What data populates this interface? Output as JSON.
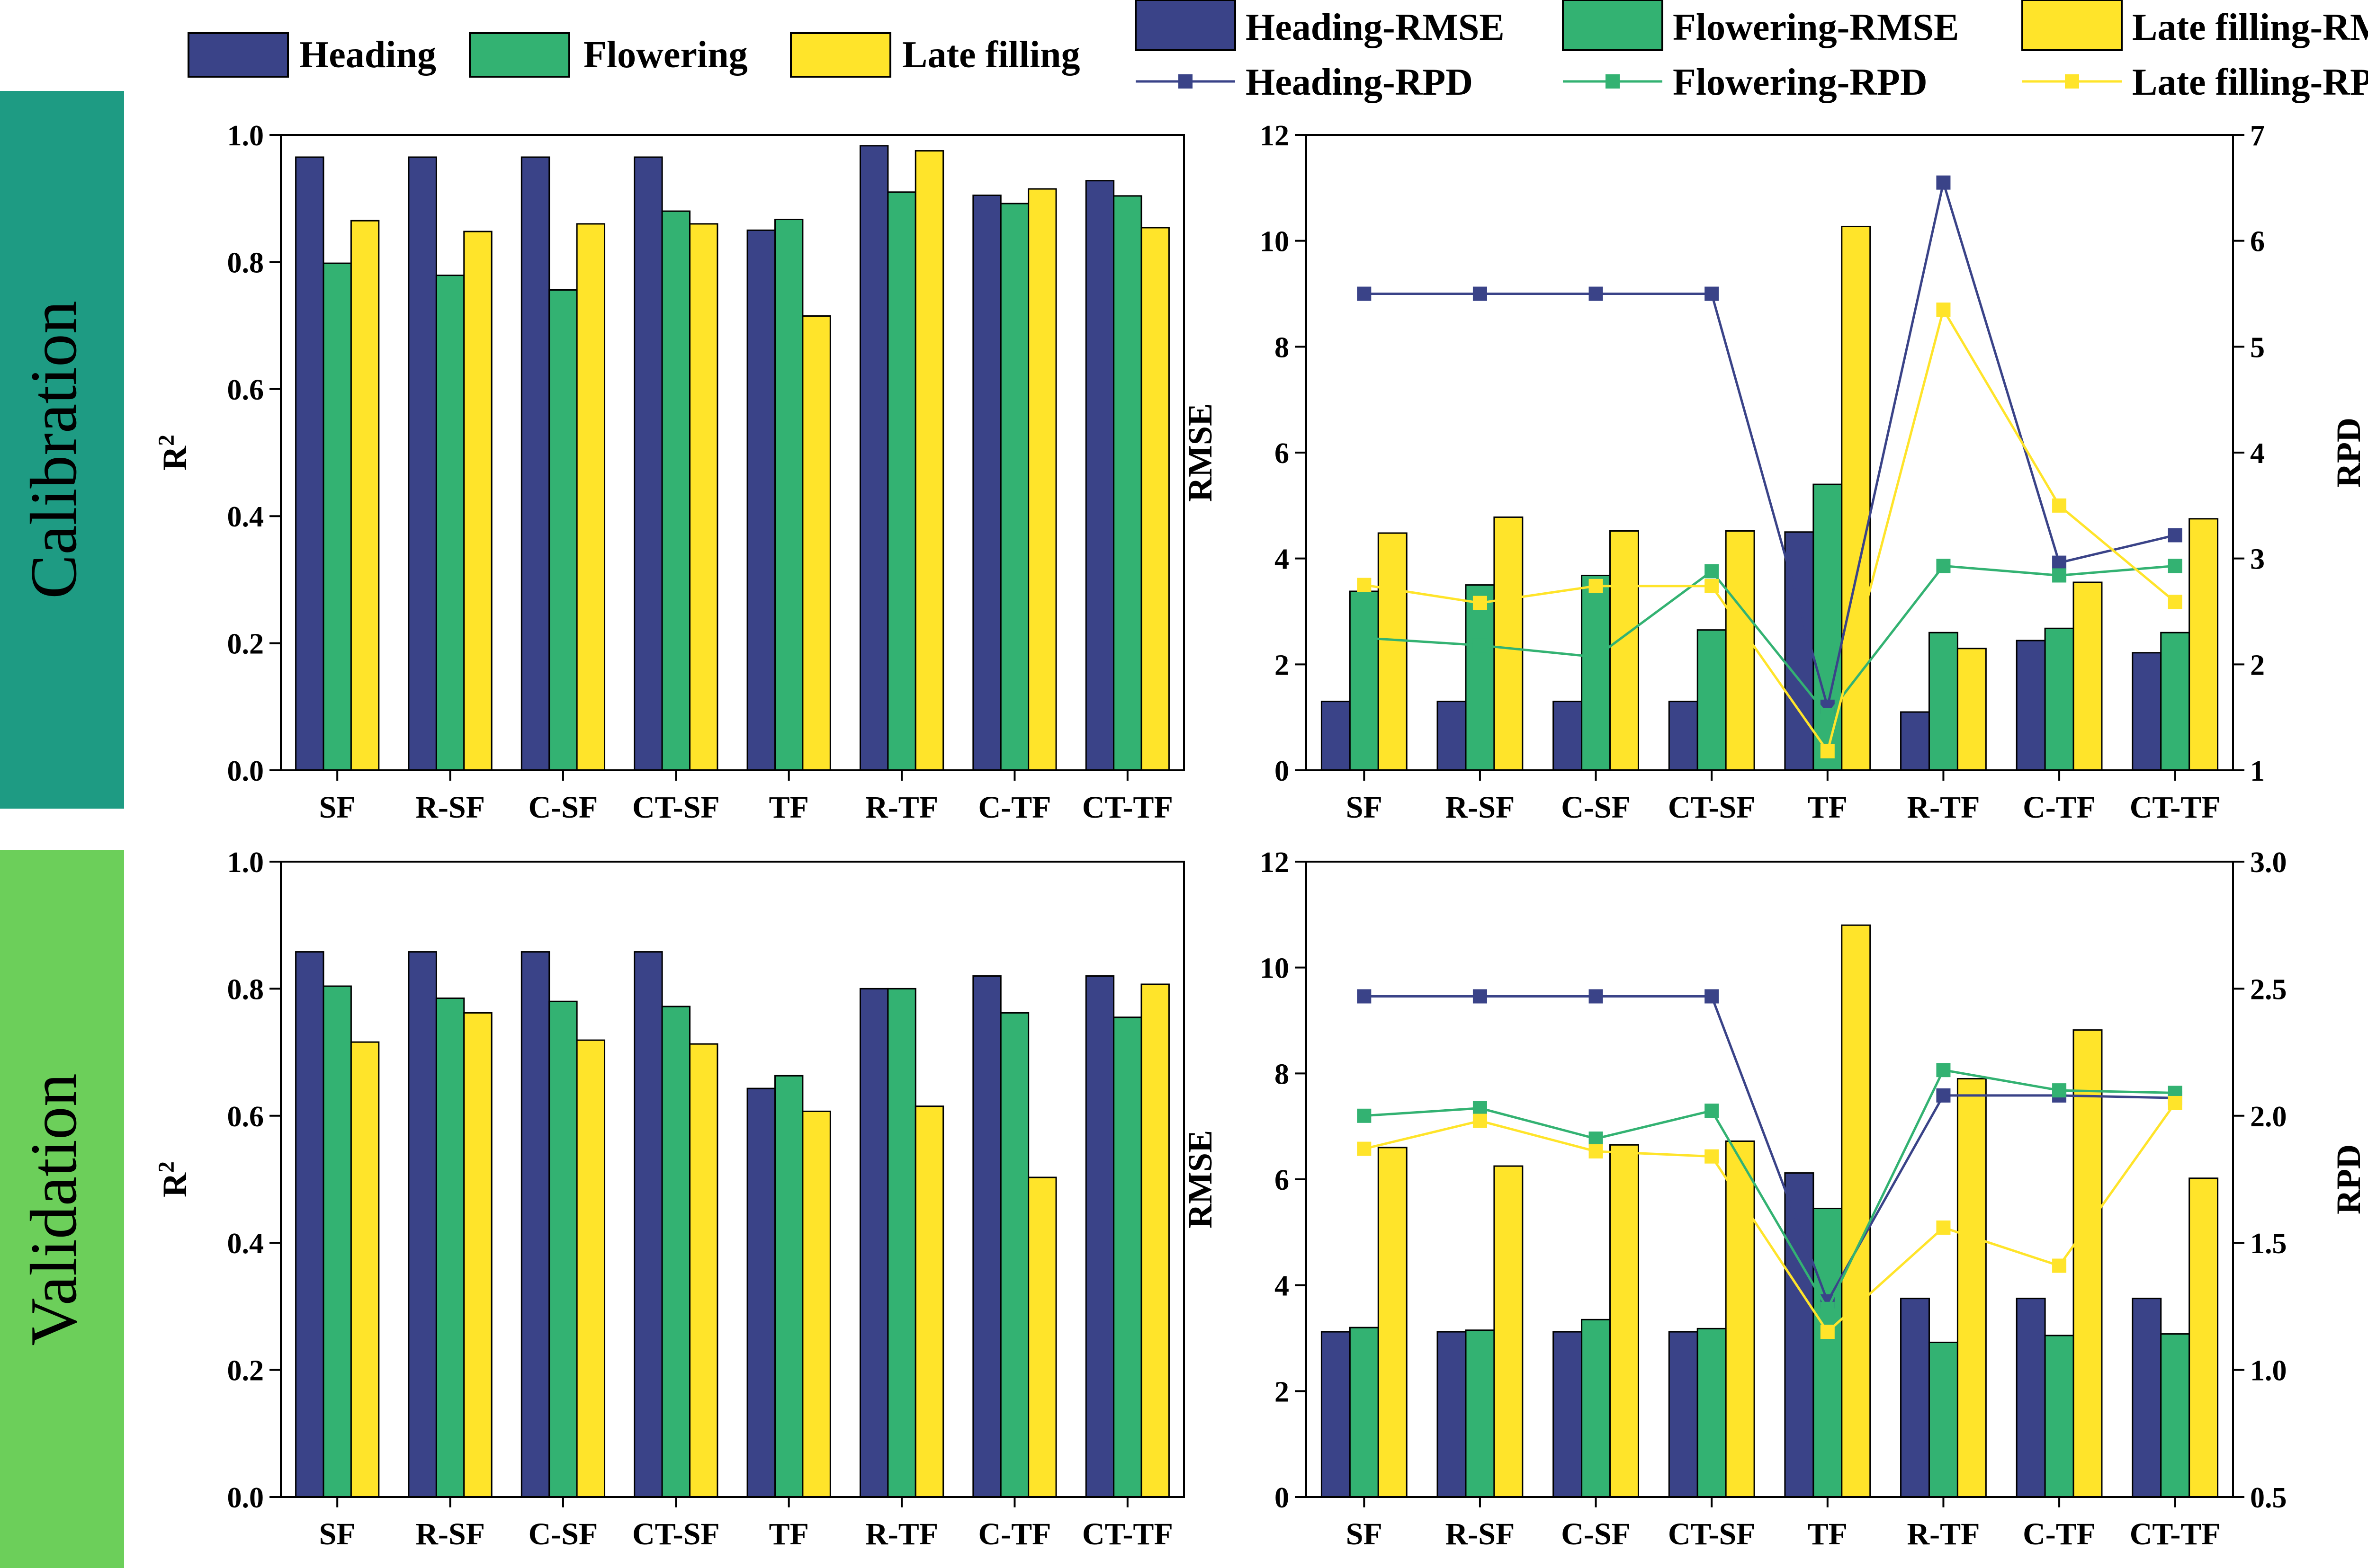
{
  "colors": {
    "heading": "#3a4388",
    "flowering": "#33b272",
    "late_filling": "#ffe42a",
    "calibration_band": "#1e9b83",
    "validation_band": "#6ccf5a"
  },
  "legend_top_left": {
    "items": [
      "Heading",
      "Flowering",
      "Late filling"
    ]
  },
  "legend_top_right": {
    "bars": [
      "Heading-RMSE",
      "Flowering-RMSE",
      "Late filling-RMSE"
    ],
    "lines": [
      "Heading-RPD",
      "Flowering-RPD",
      "Late filling-RPD"
    ]
  },
  "row_labels": {
    "calibration": "Calibration",
    "validation": "Validation"
  },
  "chart_data": [
    {
      "id": "calibration-r2",
      "type": "bar",
      "categories": [
        "SF",
        "R-SF",
        "C-SF",
        "CT-SF",
        "TF",
        "R-TF",
        "C-TF",
        "CT-TF"
      ],
      "series": [
        {
          "name": "Heading",
          "values": [
            0.965,
            0.965,
            0.965,
            0.965,
            0.85,
            0.983,
            0.905,
            0.928
          ]
        },
        {
          "name": "Flowering",
          "values": [
            0.798,
            0.779,
            0.756,
            0.88,
            0.867,
            0.91,
            0.892,
            0.904
          ]
        },
        {
          "name": "Late filling",
          "values": [
            0.865,
            0.848,
            0.86,
            0.86,
            0.715,
            0.975,
            0.915,
            0.854
          ]
        }
      ],
      "ylabel": "R",
      "ylabel_sup": "2",
      "ylim": [
        0,
        1.0
      ],
      "yticks": [
        "0.0",
        "0.2",
        "0.4",
        "0.6",
        "0.8",
        "1.0"
      ]
    },
    {
      "id": "calibration-rmse-rpd",
      "type": "bar",
      "categories": [
        "SF",
        "R-SF",
        "C-SF",
        "CT-SF",
        "TF",
        "R-TF",
        "C-TF",
        "CT-TF"
      ],
      "series": [
        {
          "name": "Heading-RMSE",
          "values": [
            1.3,
            1.3,
            1.3,
            1.3,
            4.5,
            1.1,
            2.45,
            2.22
          ]
        },
        {
          "name": "Flowering-RMSE",
          "values": [
            3.38,
            3.5,
            3.68,
            2.65,
            5.4,
            2.6,
            2.68,
            2.6
          ]
        },
        {
          "name": "Late filling-RMSE",
          "values": [
            4.48,
            4.78,
            4.52,
            4.52,
            10.27,
            2.3,
            3.55,
            4.75
          ]
        }
      ],
      "line_series": [
        {
          "name": "Heading-RPD",
          "values": [
            5.5,
            5.5,
            5.5,
            5.5,
            1.6,
            6.55,
            2.96,
            3.22
          ]
        },
        {
          "name": "Flowering-RPD",
          "values": [
            2.25,
            2.18,
            2.07,
            2.88,
            1.52,
            2.93,
            2.84,
            2.93
          ]
        },
        {
          "name": "Late filling-RPD",
          "values": [
            2.75,
            2.58,
            2.74,
            2.74,
            1.18,
            5.35,
            3.5,
            2.59
          ]
        }
      ],
      "ylabel": "RMSE",
      "y2label": "RPD",
      "ylim": [
        0,
        12
      ],
      "y2lim": [
        1,
        7
      ],
      "yticks": [
        "0",
        "2",
        "4",
        "6",
        "8",
        "10",
        "12"
      ],
      "y2ticks": [
        "1",
        "2",
        "3",
        "4",
        "5",
        "6",
        "7"
      ]
    },
    {
      "id": "validation-r2",
      "type": "bar",
      "categories": [
        "SF",
        "R-SF",
        "C-SF",
        "CT-SF",
        "TF",
        "R-TF",
        "C-TF",
        "CT-TF"
      ],
      "series": [
        {
          "name": "Heading",
          "values": [
            0.858,
            0.858,
            0.858,
            0.858,
            0.643,
            0.8,
            0.82,
            0.82
          ]
        },
        {
          "name": "Flowering",
          "values": [
            0.804,
            0.785,
            0.78,
            0.772,
            0.663,
            0.8,
            0.762,
            0.755
          ]
        },
        {
          "name": "Late filling",
          "values": [
            0.716,
            0.762,
            0.719,
            0.713,
            0.607,
            0.615,
            0.503,
            0.807
          ]
        }
      ],
      "ylabel": "R",
      "ylabel_sup": "2",
      "ylim": [
        0,
        1.0
      ],
      "yticks": [
        "0.0",
        "0.2",
        "0.4",
        "0.6",
        "0.8",
        "1.0"
      ]
    },
    {
      "id": "validation-rmse-rpd",
      "type": "bar",
      "categories": [
        "SF",
        "R-SF",
        "C-SF",
        "CT-SF",
        "TF",
        "R-TF",
        "C-TF",
        "CT-TF"
      ],
      "series": [
        {
          "name": "Heading-RMSE",
          "values": [
            3.12,
            3.12,
            3.12,
            3.12,
            6.12,
            3.75,
            3.75,
            3.75
          ]
        },
        {
          "name": "Flowering-RMSE",
          "values": [
            3.2,
            3.15,
            3.35,
            3.18,
            5.45,
            2.92,
            3.05,
            3.08
          ]
        },
        {
          "name": "Late filling-RMSE",
          "values": [
            6.6,
            6.25,
            6.65,
            6.72,
            10.8,
            7.9,
            8.82,
            6.02
          ]
        }
      ],
      "line_series": [
        {
          "name": "Heading-RPD",
          "values": [
            2.47,
            2.47,
            2.47,
            2.47,
            1.27,
            2.08,
            2.08,
            2.07
          ]
        },
        {
          "name": "Flowering-RPD",
          "values": [
            2.0,
            2.03,
            1.91,
            2.02,
            1.24,
            2.18,
            2.1,
            2.09
          ]
        },
        {
          "name": "Late filling-RPD",
          "values": [
            1.87,
            1.98,
            1.86,
            1.84,
            1.15,
            1.56,
            1.41,
            2.05
          ]
        }
      ],
      "ylabel": "RMSE",
      "y2label": "RPD",
      "ylim": [
        0,
        12
      ],
      "y2lim": [
        0.5,
        3.0
      ],
      "yticks": [
        "0",
        "2",
        "4",
        "6",
        "8",
        "10",
        "12"
      ],
      "y2ticks": [
        "0.5",
        "1.0",
        "1.5",
        "2.0",
        "2.5",
        "3.0"
      ]
    }
  ]
}
